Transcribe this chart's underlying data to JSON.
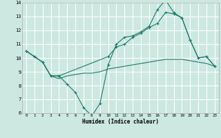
{
  "xlabel": "Humidex (Indice chaleur)",
  "xlim": [
    -0.5,
    23.5
  ],
  "ylim": [
    6,
    14
  ],
  "yticks": [
    6,
    7,
    8,
    9,
    10,
    11,
    12,
    13,
    14
  ],
  "xticks": [
    0,
    1,
    2,
    3,
    4,
    5,
    6,
    7,
    8,
    9,
    10,
    11,
    12,
    13,
    14,
    15,
    16,
    17,
    18,
    19,
    20,
    21,
    22,
    23
  ],
  "bg_color": "#cce8e0",
  "grid_color": "#ffffff",
  "line_color": "#1a7a6e",
  "line1_x": [
    0,
    1,
    2,
    3,
    4,
    5,
    6,
    7,
    8,
    9,
    10,
    11,
    12,
    13,
    14,
    15,
    16,
    17,
    18,
    19,
    20,
    21,
    22,
    23
  ],
  "line1_y": [
    10.5,
    10.1,
    9.7,
    8.7,
    8.7,
    8.1,
    7.5,
    6.4,
    5.8,
    6.7,
    9.5,
    11.0,
    11.5,
    11.6,
    11.9,
    12.3,
    13.5,
    14.2,
    13.3,
    12.9,
    11.3,
    10.0,
    10.1,
    9.4
  ],
  "line2_x": [
    0,
    1,
    2,
    3,
    4,
    10,
    11,
    12,
    13,
    14,
    15,
    16,
    17,
    18,
    19,
    20,
    21,
    22,
    23
  ],
  "line2_y": [
    10.5,
    10.1,
    9.7,
    8.7,
    8.7,
    10.1,
    10.8,
    11.0,
    11.5,
    11.8,
    12.2,
    12.5,
    13.3,
    13.2,
    12.9,
    11.3,
    10.0,
    10.1,
    9.4
  ],
  "line3_x": [
    0,
    1,
    2,
    3,
    4,
    5,
    6,
    7,
    8,
    9,
    10,
    11,
    12,
    13,
    14,
    15,
    16,
    17,
    18,
    19,
    20,
    21,
    22,
    23
  ],
  "line3_y": [
    10.5,
    10.1,
    9.7,
    8.7,
    8.5,
    8.7,
    8.8,
    8.9,
    8.9,
    9.0,
    9.2,
    9.3,
    9.4,
    9.5,
    9.6,
    9.7,
    9.8,
    9.9,
    9.9,
    9.9,
    9.8,
    9.7,
    9.6,
    9.4
  ]
}
